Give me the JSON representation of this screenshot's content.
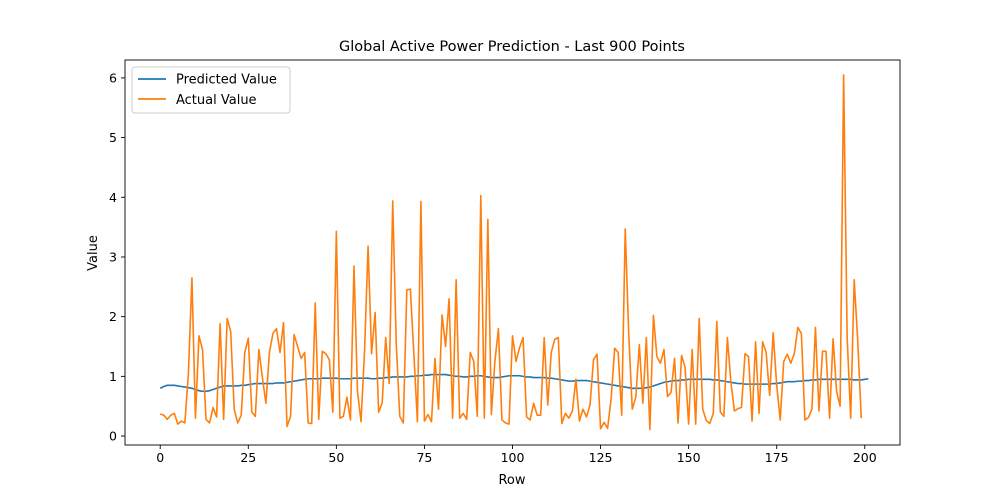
{
  "chart_data": {
    "type": "line",
    "title": "Global Active Power Prediction - Last 900 Points",
    "xlabel": "Row",
    "ylabel": "Value",
    "xlim": [
      -10,
      210
    ],
    "ylim": [
      -0.15,
      6.3
    ],
    "xticks": [
      0,
      25,
      50,
      75,
      100,
      125,
      150,
      175,
      200
    ],
    "yticks": [
      0,
      1,
      2,
      3,
      4,
      5,
      6
    ],
    "grid": false,
    "legend": "top-left",
    "colors": {
      "predicted": "#1f77b4",
      "actual": "#ff7f0e"
    },
    "series": [
      {
        "name": "Predicted Value",
        "color": "#1f77b4",
        "values": [
          0.8,
          0.83,
          0.85,
          0.85,
          0.85,
          0.84,
          0.83,
          0.82,
          0.81,
          0.8,
          0.78,
          0.76,
          0.75,
          0.75,
          0.76,
          0.78,
          0.8,
          0.82,
          0.84,
          0.84,
          0.84,
          0.84,
          0.84,
          0.85,
          0.85,
          0.86,
          0.87,
          0.88,
          0.88,
          0.88,
          0.88,
          0.88,
          0.88,
          0.89,
          0.89,
          0.89,
          0.9,
          0.91,
          0.92,
          0.93,
          0.94,
          0.95,
          0.96,
          0.96,
          0.96,
          0.96,
          0.97,
          0.97,
          0.97,
          0.97,
          0.97,
          0.96,
          0.96,
          0.96,
          0.96,
          0.97,
          0.97,
          0.97,
          0.97,
          0.97,
          0.96,
          0.96,
          0.97,
          0.97,
          0.98,
          0.98,
          0.99,
          0.99,
          0.99,
          0.99,
          0.99,
          1.0,
          1.0,
          1.01,
          1.01,
          1.02,
          1.02,
          1.03,
          1.03,
          1.03,
          1.03,
          1.03,
          1.02,
          1.01,
          1.0,
          1.0,
          0.99,
          0.99,
          1.0,
          1.0,
          1.01,
          1.01,
          1.0,
          0.99,
          0.98,
          0.98,
          0.98,
          0.99,
          1.0,
          1.01,
          1.01,
          1.01,
          1.01,
          1.0,
          0.99,
          0.99,
          0.98,
          0.98,
          0.98,
          0.98,
          0.97,
          0.97,
          0.96,
          0.95,
          0.94,
          0.93,
          0.92,
          0.92,
          0.93,
          0.93,
          0.93,
          0.93,
          0.92,
          0.91,
          0.9,
          0.89,
          0.88,
          0.87,
          0.86,
          0.85,
          0.84,
          0.83,
          0.82,
          0.81,
          0.8,
          0.8,
          0.8,
          0.8,
          0.81,
          0.82,
          0.84,
          0.86,
          0.88,
          0.9,
          0.91,
          0.92,
          0.93,
          0.93,
          0.94,
          0.94,
          0.95,
          0.95,
          0.95,
          0.95,
          0.95,
          0.95,
          0.95,
          0.94,
          0.94,
          0.93,
          0.92,
          0.91,
          0.9,
          0.89,
          0.88,
          0.88,
          0.87,
          0.87,
          0.87,
          0.87,
          0.87,
          0.87,
          0.87,
          0.87,
          0.88,
          0.88,
          0.89,
          0.9,
          0.91,
          0.91,
          0.91,
          0.92,
          0.92,
          0.93,
          0.93,
          0.94,
          0.94,
          0.95,
          0.95,
          0.95,
          0.95,
          0.95,
          0.95,
          0.95,
          0.95,
          0.95,
          0.95,
          0.94,
          0.94,
          0.94,
          0.95,
          0.96
        ]
      },
      {
        "name": "Actual Value",
        "color": "#ff7f0e",
        "values": [
          0.37,
          0.35,
          0.28,
          0.35,
          0.38,
          0.2,
          0.25,
          0.22,
          1.05,
          2.65,
          0.3,
          1.68,
          1.45,
          0.28,
          0.22,
          0.48,
          0.32,
          1.88,
          0.28,
          1.97,
          1.75,
          0.45,
          0.22,
          0.35,
          1.4,
          1.64,
          0.4,
          0.33,
          1.45,
          0.98,
          0.55,
          1.4,
          1.72,
          1.8,
          1.4,
          1.9,
          0.16,
          0.33,
          1.7,
          1.5,
          1.3,
          1.4,
          0.22,
          0.21,
          2.23,
          0.28,
          1.42,
          1.38,
          1.28,
          0.4,
          3.43,
          0.3,
          0.33,
          0.65,
          0.27,
          2.85,
          0.75,
          0.24,
          1.42,
          3.18,
          1.38,
          2.07,
          0.4,
          0.55,
          1.65,
          0.88,
          3.94,
          1.54,
          0.33,
          0.22,
          2.45,
          2.46,
          1.38,
          0.24,
          3.93,
          0.25,
          0.36,
          0.24,
          1.3,
          0.45,
          2.03,
          1.5,
          2.3,
          0.3,
          2.62,
          0.3,
          0.38,
          0.28,
          1.4,
          1.25,
          0.33,
          4.03,
          0.3,
          3.63,
          0.36,
          1.25,
          1.8,
          0.27,
          0.22,
          0.2,
          1.68,
          1.25,
          1.48,
          1.65,
          0.32,
          0.27,
          0.55,
          0.35,
          0.35,
          1.65,
          0.52,
          1.4,
          1.62,
          1.65,
          0.21,
          0.38,
          0.3,
          0.42,
          0.95,
          0.25,
          0.45,
          0.32,
          0.52,
          1.28,
          1.37,
          0.12,
          0.23,
          0.13,
          0.63,
          1.47,
          1.4,
          0.35,
          3.47,
          1.7,
          0.45,
          0.65,
          1.53,
          0.55,
          1.65,
          0.11,
          2.02,
          1.33,
          1.22,
          1.45,
          0.66,
          0.73,
          1.3,
          0.22,
          1.35,
          1.15,
          0.2,
          1.45,
          0.2,
          1.97,
          0.45,
          0.26,
          0.21,
          0.38,
          1.92,
          0.4,
          0.33,
          1.65,
          0.9,
          0.42,
          0.46,
          0.48,
          1.38,
          1.33,
          0.25,
          1.58,
          0.38,
          1.58,
          1.4,
          0.68,
          1.73,
          0.85,
          0.27,
          1.25,
          1.37,
          1.22,
          1.38,
          1.82,
          1.72,
          0.27,
          0.31,
          0.45,
          1.82,
          0.42,
          1.42,
          1.42,
          0.3,
          1.63,
          0.75,
          0.5,
          6.05,
          1.65,
          0.3,
          2.62,
          1.6,
          0.3
        ]
      }
    ]
  }
}
